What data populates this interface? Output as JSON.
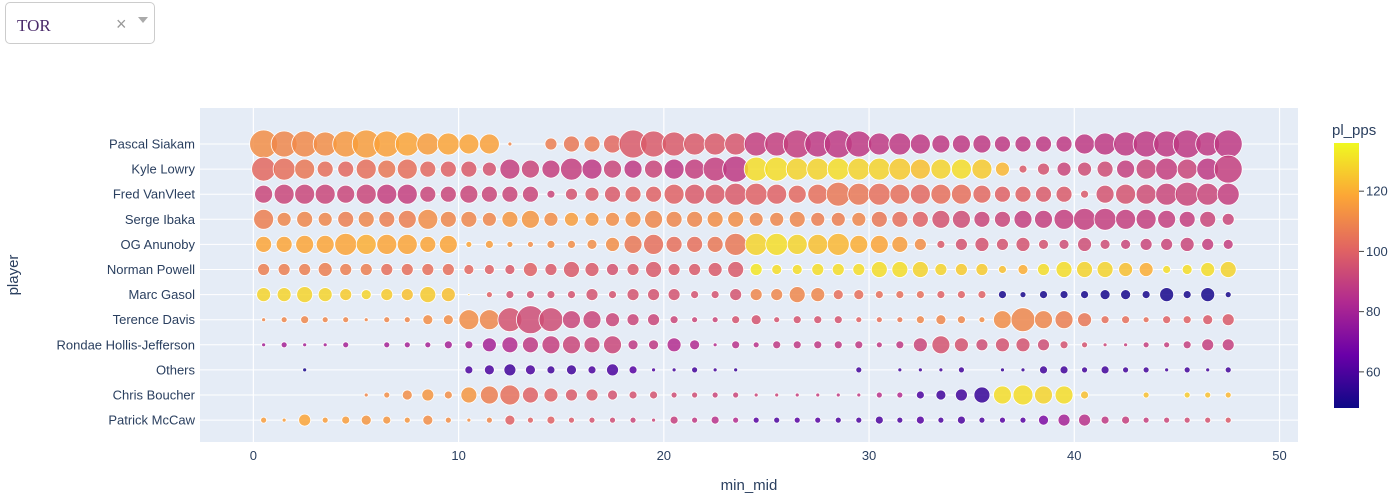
{
  "dropdown": {
    "value": "TOR",
    "clear_glyph": "×",
    "icons": [
      "clear-icon",
      "chevron-down-icon"
    ]
  },
  "chart_data": {
    "type": "scatter",
    "subtype": "bubble",
    "xlabel": "min_mid",
    "ylabel": "player",
    "xlim": [
      -2.6,
      50.9
    ],
    "xticks": [
      0,
      10,
      20,
      30,
      40,
      50
    ],
    "grid": true,
    "colorbar": {
      "title": "pl_pps",
      "range": [
        48,
        136
      ],
      "ticks": [
        60,
        80,
        100,
        120
      ],
      "colorscale": [
        "#0d0887",
        "#6a00a8",
        "#b12a90",
        "#e16462",
        "#fca636",
        "#f0f921"
      ],
      "position": "right"
    },
    "players": [
      "Pascal Siakam",
      "Kyle Lowry",
      "Fred VanVleet",
      "Serge Ibaka",
      "OG Anunoby",
      "Norman Powell",
      "Marc Gasol",
      "Terence Davis",
      "Rondae Hollis-Jefferson",
      "Others",
      "Chris Boucher",
      "Patrick McCaw"
    ],
    "x_points": [
      0.5,
      1.5,
      2.5,
      3.5,
      4.5,
      5.5,
      6.5,
      7.5,
      8.5,
      9.5,
      10.5,
      11.5,
      12.5,
      13.5,
      14.5,
      15.5,
      16.5,
      17.5,
      18.5,
      19.5,
      20.5,
      21.5,
      22.5,
      23.5,
      24.5,
      25.5,
      26.5,
      27.5,
      28.5,
      29.5,
      30.5,
      31.5,
      32.5,
      33.5,
      34.5,
      35.5,
      36.5,
      37.5,
      38.5,
      39.5,
      40.5,
      41.5,
      42.5,
      43.5,
      44.5,
      45.5,
      46.5,
      47.5
    ],
    "series": [
      {
        "name": "Pascal Siakam",
        "size": [
          14,
          13,
          13,
          12,
          13,
          14,
          13,
          12,
          11,
          11,
          10,
          10,
          2,
          0,
          6,
          8,
          8,
          9,
          14,
          13,
          12,
          11,
          11,
          11,
          12,
          12,
          14,
          13,
          14,
          13,
          11,
          11,
          10,
          9,
          9,
          9,
          8,
          8,
          8,
          8,
          10,
          11,
          12,
          13,
          13,
          14,
          12,
          14
        ],
        "pps": [
          112,
          110,
          111,
          112,
          115,
          116,
          117,
          118,
          116,
          118,
          118,
          117,
          110,
          0,
          108,
          106,
          107,
          102,
          98,
          98,
          98,
          98,
          98,
          97,
          90,
          90,
          90,
          88,
          88,
          88,
          88,
          88,
          88,
          88,
          88,
          88,
          88,
          88,
          88,
          88,
          88,
          88,
          88,
          88,
          88,
          88,
          88,
          88
        ]
      },
      {
        "name": "Kyle Lowry",
        "size": [
          12,
          11,
          10,
          8,
          8,
          10,
          9,
          10,
          8,
          8,
          8,
          7,
          10,
          9,
          9,
          11,
          10,
          9,
          9,
          9,
          10,
          10,
          12,
          13,
          12,
          12,
          11,
          11,
          11,
          11,
          11,
          11,
          10,
          10,
          10,
          10,
          7,
          4,
          6,
          7,
          7,
          8,
          9,
          10,
          11,
          10,
          11,
          14
        ],
        "pps": [
          102,
          104,
          106,
          104,
          102,
          104,
          106,
          104,
          102,
          100,
          98,
          96,
          90,
          92,
          90,
          90,
          88,
          92,
          88,
          92,
          88,
          90,
          90,
          88,
          130,
          130,
          128,
          128,
          130,
          128,
          128,
          126,
          124,
          128,
          130,
          126,
          122,
          98,
          96,
          92,
          94,
          94,
          90,
          92,
          90,
          92,
          88,
          90
        ]
      },
      {
        "name": "Fred VanVleet",
        "size": [
          9,
          10,
          10,
          10,
          9,
          10,
          10,
          10,
          8,
          8,
          9,
          8,
          8,
          8,
          4,
          6,
          7,
          8,
          8,
          8,
          10,
          10,
          10,
          11,
          11,
          10,
          9,
          10,
          12,
          11,
          11,
          10,
          10,
          10,
          10,
          9,
          8,
          8,
          8,
          8,
          4,
          9,
          10,
          10,
          11,
          12,
          11,
          11
        ],
        "pps": [
          92,
          92,
          92,
          92,
          92,
          92,
          90,
          90,
          92,
          92,
          92,
          92,
          92,
          92,
          92,
          96,
          98,
          98,
          100,
          100,
          100,
          98,
          98,
          98,
          100,
          100,
          102,
          104,
          106,
          106,
          104,
          104,
          102,
          104,
          104,
          102,
          100,
          100,
          98,
          98,
          98,
          96,
          96,
          94,
          92,
          92,
          92,
          90
        ]
      },
      {
        "name": "Serge Ibaka",
        "size": [
          10,
          7,
          8,
          7,
          8,
          8,
          8,
          9,
          10,
          8,
          8,
          7,
          8,
          9,
          7,
          7,
          7,
          7,
          8,
          9,
          8,
          8,
          8,
          8,
          7,
          7,
          8,
          7,
          7,
          7,
          8,
          8,
          8,
          9,
          9,
          8,
          8,
          9,
          9,
          10,
          11,
          11,
          10,
          10,
          9,
          8,
          8,
          6
        ],
        "pps": [
          108,
          110,
          110,
          110,
          108,
          110,
          108,
          108,
          112,
          110,
          110,
          110,
          114,
          114,
          112,
          116,
          114,
          112,
          112,
          110,
          110,
          110,
          112,
          112,
          110,
          110,
          110,
          108,
          108,
          110,
          106,
          104,
          100,
          96,
          94,
          92,
          92,
          90,
          90,
          90,
          90,
          90,
          90,
          90,
          90,
          90,
          92,
          92
        ],
        "mute_to": 47
      },
      {
        "name": "OG Anunoby",
        "size": [
          8,
          8,
          9,
          9,
          11,
          10,
          10,
          10,
          8,
          9,
          3,
          4,
          3,
          3,
          4,
          4,
          5,
          7,
          9,
          10,
          8,
          8,
          8,
          11,
          11,
          11,
          10,
          10,
          11,
          9,
          9,
          8,
          6,
          4,
          6,
          7,
          6,
          7,
          5,
          5,
          7,
          5,
          5,
          6,
          6,
          7,
          6,
          5
        ],
        "pps": [
          118,
          118,
          118,
          118,
          118,
          120,
          118,
          118,
          118,
          118,
          118,
          116,
          114,
          112,
          112,
          112,
          112,
          112,
          106,
          104,
          104,
          104,
          106,
          106,
          128,
          130,
          128,
          124,
          122,
          120,
          118,
          116,
          112,
          98,
          96,
          96,
          96,
          96,
          96,
          94,
          94,
          94,
          92,
          92,
          92,
          92,
          90,
          90
        ]
      },
      {
        "name": "Norman Powell",
        "size": [
          6,
          6,
          6,
          7,
          6,
          6,
          6,
          6,
          6,
          6,
          5,
          5,
          5,
          7,
          6,
          8,
          7,
          6,
          6,
          8,
          6,
          6,
          7,
          8,
          6,
          5,
          5,
          6,
          6,
          6,
          8,
          8,
          8,
          6,
          6,
          6,
          4,
          5,
          6,
          8,
          8,
          8,
          7,
          7,
          4,
          5,
          7,
          8
        ],
        "pps": [
          108,
          108,
          108,
          108,
          108,
          108,
          104,
          104,
          104,
          104,
          102,
          100,
          98,
          100,
          98,
          98,
          98,
          96,
          98,
          98,
          98,
          98,
          98,
          98,
          132,
          130,
          130,
          130,
          130,
          130,
          130,
          130,
          128,
          128,
          126,
          126,
          124,
          120,
          130,
          130,
          128,
          128,
          124,
          120,
          130,
          130,
          130,
          128
        ],
        "mute_to": 0
      },
      {
        "name": "Marc Gasol",
        "size": [
          7,
          7,
          8,
          7,
          6,
          5,
          6,
          6,
          8,
          7,
          1,
          3,
          4,
          4,
          4,
          4,
          6,
          4,
          6,
          6,
          6,
          4,
          4,
          6,
          6,
          6,
          8,
          7,
          5,
          5,
          4,
          4,
          4,
          4,
          4,
          4,
          4,
          3,
          4,
          4,
          4,
          5,
          5,
          4,
          7,
          4,
          7,
          3
        ],
        "pps": [
          128,
          128,
          128,
          128,
          126,
          128,
          126,
          124,
          126,
          124,
          124,
          100,
          96,
          96,
          96,
          96,
          96,
          96,
          96,
          96,
          96,
          96,
          96,
          96,
          110,
          110,
          110,
          110,
          104,
          104,
          104,
          104,
          104,
          100,
          100,
          100,
          50,
          50,
          50,
          50,
          50,
          50,
          50,
          50,
          50,
          50,
          50,
          50
        ]
      },
      {
        "name": "Terence Davis",
        "size": [
          2,
          3,
          4,
          3,
          3,
          2,
          3,
          3,
          5,
          5,
          10,
          10,
          12,
          14,
          12,
          9,
          9,
          7,
          6,
          6,
          4,
          3,
          3,
          4,
          5,
          3,
          4,
          4,
          4,
          3,
          3,
          3,
          4,
          5,
          4,
          3,
          9,
          12,
          9,
          9,
          7,
          4,
          4,
          3,
          4,
          4,
          5,
          6
        ],
        "pps": [
          110,
          110,
          110,
          110,
          110,
          110,
          110,
          110,
          112,
          112,
          112,
          110,
          96,
          94,
          94,
          92,
          92,
          92,
          92,
          92,
          92,
          92,
          92,
          96,
          96,
          96,
          96,
          96,
          96,
          100,
          104,
          106,
          110,
          110,
          110,
          112,
          112,
          110,
          110,
          108,
          106,
          104,
          104,
          104,
          100,
          100,
          98,
          98
        ]
      },
      {
        "name": "Rondae Hollis-Jefferson",
        "size": [
          2,
          3,
          2,
          2,
          3,
          0,
          3,
          3,
          3,
          4,
          4,
          7,
          8,
          8,
          9,
          9,
          8,
          9,
          5,
          5,
          7,
          5,
          2,
          4,
          3,
          4,
          4,
          4,
          4,
          4,
          3,
          4,
          7,
          9,
          7,
          6,
          7,
          7,
          6,
          4,
          3,
          2,
          2,
          3,
          3,
          4,
          6,
          6
        ],
        "pps": [
          80,
          80,
          80,
          80,
          80,
          0,
          80,
          80,
          80,
          80,
          80,
          80,
          84,
          88,
          90,
          92,
          92,
          92,
          88,
          88,
          84,
          84,
          84,
          86,
          86,
          88,
          88,
          88,
          88,
          88,
          88,
          88,
          92,
          96,
          96,
          94,
          96,
          96,
          94,
          96,
          96,
          92,
          90,
          90,
          90,
          90,
          90,
          90
        ]
      },
      {
        "name": "Others",
        "size": [
          0,
          0,
          2,
          0,
          0,
          0,
          0,
          0,
          0,
          0,
          4,
          5,
          6,
          5,
          4,
          5,
          4,
          6,
          4,
          2,
          2,
          3,
          2,
          2,
          0,
          0,
          0,
          0,
          0,
          3,
          0,
          2,
          2,
          2,
          3,
          0,
          2,
          2,
          4,
          4,
          3,
          4,
          3,
          3,
          2,
          3,
          2,
          3
        ],
        "pps": [
          0,
          0,
          50,
          0,
          0,
          0,
          0,
          0,
          0,
          0,
          60,
          60,
          58,
          60,
          58,
          58,
          60,
          60,
          62,
          60,
          58,
          58,
          58,
          56,
          0,
          0,
          0,
          0,
          0,
          58,
          0,
          58,
          58,
          58,
          58,
          0,
          56,
          56,
          58,
          58,
          58,
          58,
          58,
          58,
          58,
          58,
          58,
          58
        ]
      },
      {
        "name": "Chris Boucher",
        "size": [
          0,
          0,
          0,
          0,
          0,
          2,
          3,
          5,
          6,
          4,
          8,
          9,
          10,
          8,
          7,
          6,
          6,
          5,
          4,
          4,
          3,
          3,
          3,
          3,
          2,
          2,
          2,
          2,
          2,
          2,
          3,
          3,
          4,
          5,
          6,
          8,
          9,
          10,
          9,
          9,
          4,
          0,
          0,
          3,
          0,
          3,
          3,
          3
        ],
        "pps": [
          0,
          0,
          0,
          0,
          0,
          110,
          112,
          112,
          114,
          112,
          114,
          108,
          104,
          100,
          100,
          98,
          98,
          96,
          96,
          96,
          94,
          94,
          92,
          92,
          92,
          92,
          90,
          90,
          88,
          88,
          86,
          84,
          60,
          58,
          58,
          56,
          130,
          130,
          128,
          130,
          124,
          0,
          0,
          124,
          0,
          126,
          124,
          122
        ],
        "mute_to": 0
      },
      {
        "name": "Patrick McCaw",
        "size": [
          3,
          2,
          6,
          3,
          4,
          5,
          4,
          3,
          5,
          3,
          2,
          3,
          5,
          3,
          4,
          3,
          3,
          3,
          3,
          2,
          4,
          3,
          4,
          3,
          3,
          3,
          3,
          3,
          3,
          3,
          4,
          3,
          4,
          3,
          4,
          3,
          3,
          3,
          5,
          6,
          6,
          4,
          4,
          3,
          3,
          3,
          3,
          3
        ],
        "pps": [
          116,
          116,
          118,
          116,
          116,
          114,
          114,
          114,
          112,
          112,
          112,
          110,
          100,
          100,
          100,
          98,
          96,
          94,
          92,
          92,
          90,
          88,
          86,
          84,
          62,
          60,
          62,
          62,
          60,
          60,
          60,
          60,
          62,
          60,
          60,
          60,
          62,
          62,
          70,
          80,
          86,
          88,
          90,
          90,
          92,
          94,
          96,
          98
        ]
      }
    ]
  }
}
